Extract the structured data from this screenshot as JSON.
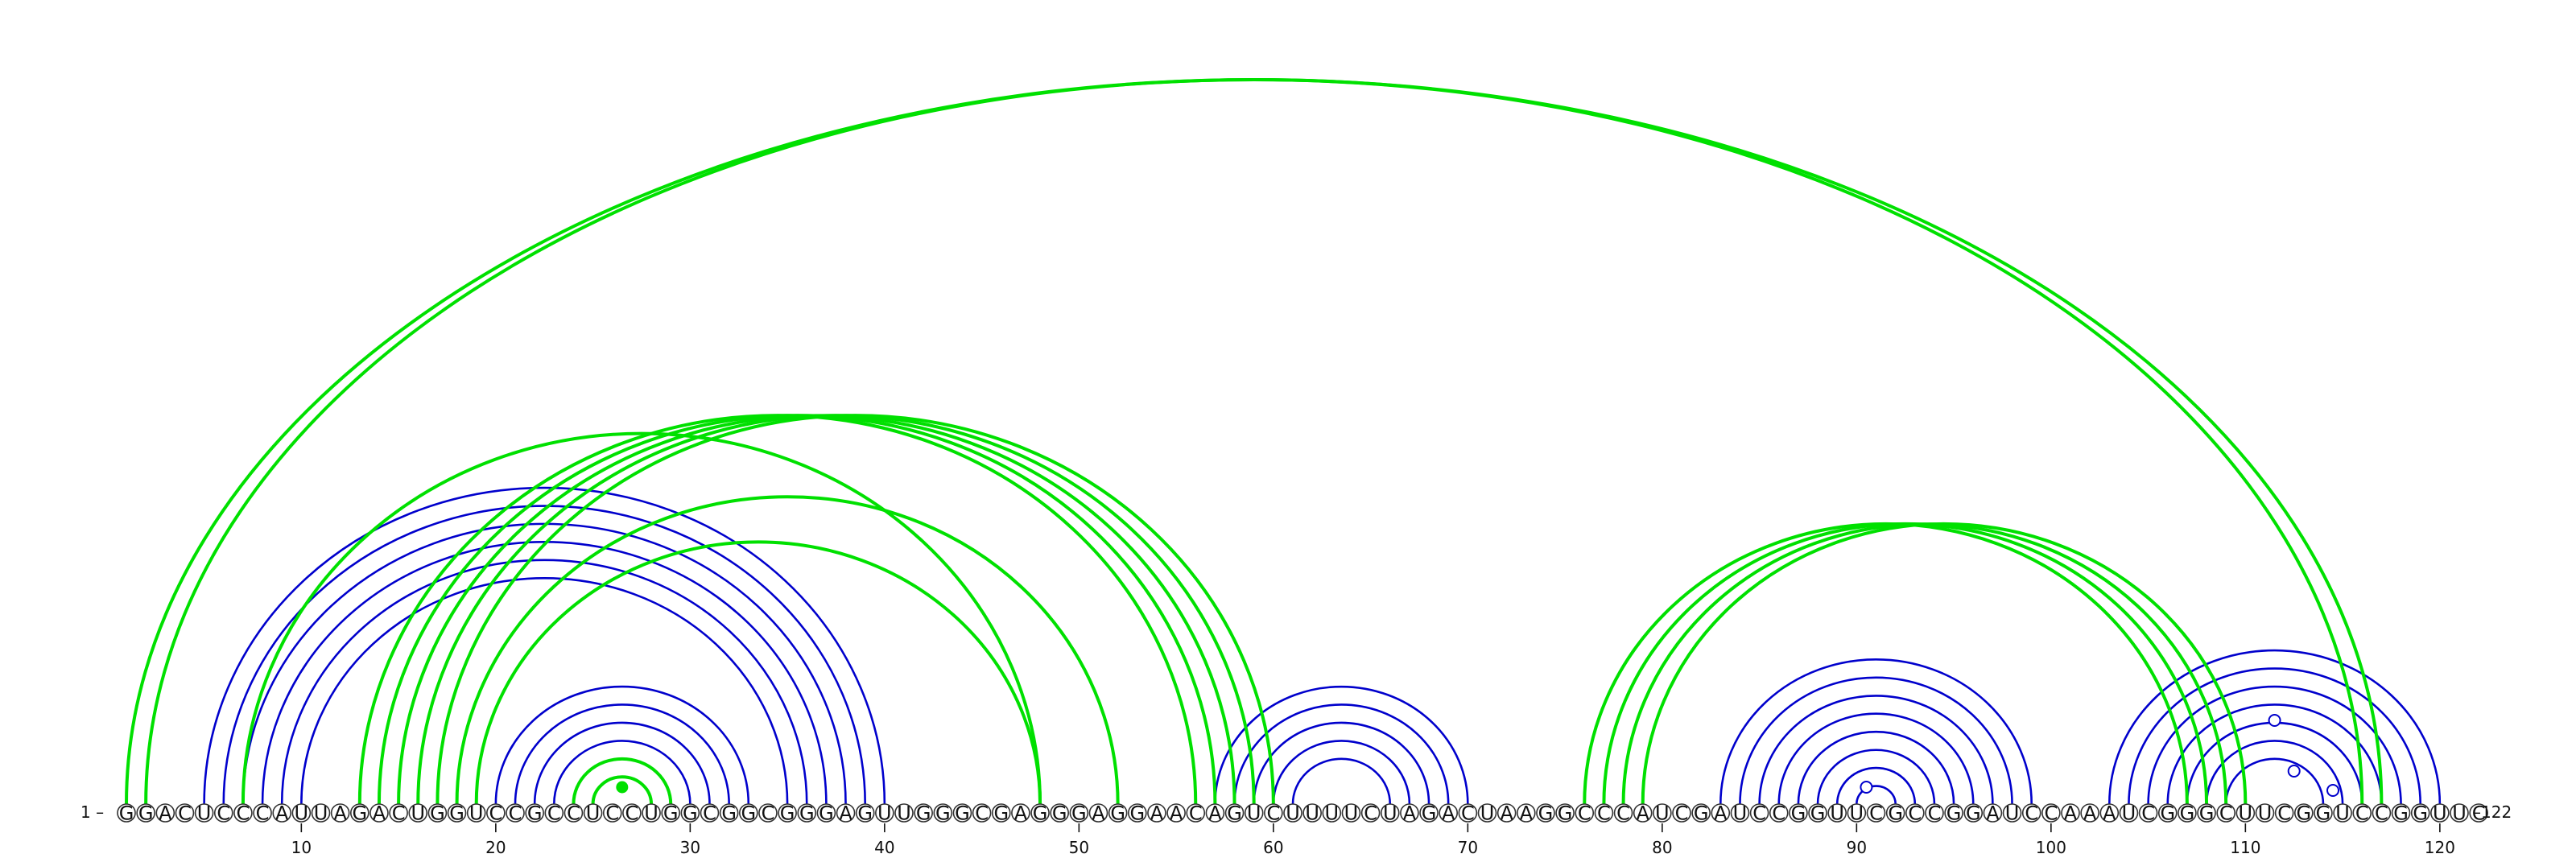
{
  "sequence": "GGACUCCCAUUAGACUGGUCCGCCUCCUGGCGGCGGGAGUUGGGCGAGGGAGGAACAGUCUUUUCUAGACUAAGGCCCAUCGAUCCGGUUCGCCGGAUCCAAAUCGGGCUUCGGUCCGGUUC",
  "start_label": "1 –",
  "end_label": "–122",
  "ticks": [
    10,
    20,
    30,
    40,
    50,
    60,
    70,
    80,
    90,
    100,
    110,
    120
  ],
  "colors": {
    "blue": "#0000cc",
    "green": "#00e000"
  },
  "pairs": {
    "blue": [
      [
        5,
        40
      ],
      [
        6,
        39
      ],
      [
        7,
        38
      ],
      [
        8,
        37
      ],
      [
        9,
        36
      ],
      [
        10,
        35
      ],
      [
        20,
        33
      ],
      [
        21,
        32
      ],
      [
        22,
        31
      ],
      [
        23,
        30
      ],
      [
        24,
        29
      ],
      [
        25,
        28
      ],
      [
        57,
        70
      ],
      [
        58,
        69
      ],
      [
        59,
        68
      ],
      [
        60,
        67
      ],
      [
        61,
        66
      ],
      [
        83,
        99
      ],
      [
        84,
        98
      ],
      [
        85,
        97
      ],
      [
        86,
        96
      ],
      [
        87,
        95
      ],
      [
        88,
        94
      ],
      [
        89,
        93
      ],
      [
        90,
        92
      ],
      [
        103,
        120
      ],
      [
        104,
        119
      ],
      [
        105,
        118
      ],
      [
        106,
        117
      ],
      [
        107,
        116
      ],
      [
        108,
        115
      ],
      [
        109,
        114
      ]
    ],
    "green": [
      [
        1,
        117
      ],
      [
        2,
        116
      ],
      [
        7,
        48
      ],
      [
        13,
        56
      ],
      [
        14,
        57
      ],
      [
        15,
        58
      ],
      [
        16,
        59
      ],
      [
        17,
        60
      ],
      [
        18,
        52
      ],
      [
        19,
        48
      ],
      [
        24,
        29
      ],
      [
        25,
        28
      ],
      [
        76,
        107
      ],
      [
        77,
        108
      ],
      [
        78,
        109
      ],
      [
        79,
        110
      ]
    ]
  },
  "markers": {
    "green": [
      26.5
    ],
    "blue": [
      90.5,
      111.5,
      112.5,
      114.5
    ]
  }
}
